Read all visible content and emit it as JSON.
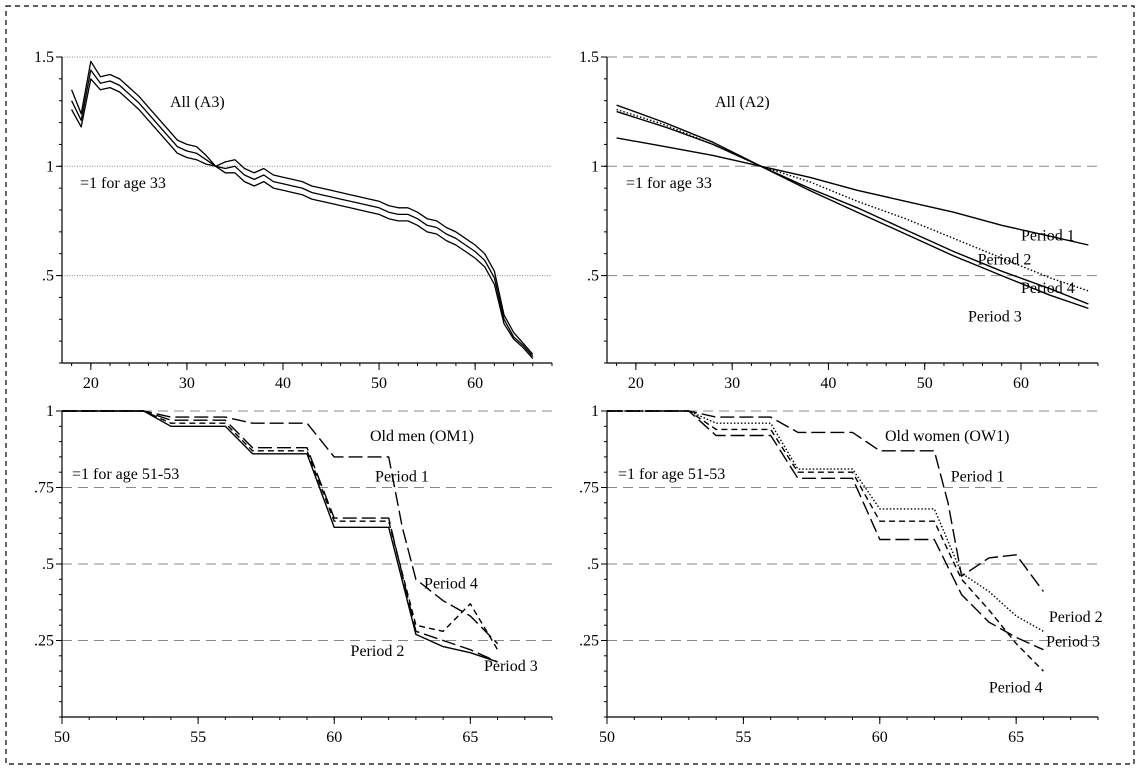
{
  "charts": [
    {
      "title": "All (A3)",
      "type": "line",
      "annotation": "=1 for age 33",
      "xlim": [
        17,
        68
      ],
      "ylim": [
        0.1,
        1.5
      ],
      "x_ticks": [
        20,
        30,
        40,
        50,
        60
      ],
      "y_ticks": [
        {
          "value": 0.5,
          "label": ".5"
        },
        {
          "value": 1,
          "label": "1"
        },
        {
          "value": 1.5,
          "label": "1.5"
        }
      ],
      "grid_style": "dotted",
      "series": [
        {
          "style": "solid",
          "x": [
            18,
            19,
            20,
            21,
            22,
            23,
            24,
            25,
            26,
            27,
            28,
            29,
            30,
            31,
            32,
            33,
            34,
            35,
            36,
            37,
            38,
            39,
            40,
            41,
            42,
            43,
            44,
            45,
            46,
            47,
            48,
            49,
            50,
            51,
            52,
            53,
            54,
            55,
            56,
            57,
            58,
            59,
            60,
            61,
            62,
            63,
            64,
            65,
            66
          ],
          "y": [
            1.3,
            1.21,
            1.44,
            1.38,
            1.39,
            1.37,
            1.33,
            1.29,
            1.24,
            1.19,
            1.14,
            1.09,
            1.07,
            1.06,
            1.03,
            1.0,
            0.99,
            1.0,
            0.96,
            0.94,
            0.96,
            0.93,
            0.92,
            0.91,
            0.9,
            0.88,
            0.87,
            0.86,
            0.85,
            0.84,
            0.83,
            0.82,
            0.81,
            0.79,
            0.78,
            0.78,
            0.76,
            0.73,
            0.72,
            0.69,
            0.67,
            0.64,
            0.61,
            0.57,
            0.49,
            0.3,
            0.22,
            0.18,
            0.13
          ]
        },
        {
          "style": "solid",
          "x": [
            18,
            19,
            20,
            21,
            22,
            23,
            24,
            25,
            26,
            27,
            28,
            29,
            30,
            31,
            32,
            33,
            34,
            35,
            36,
            37,
            38,
            39,
            40,
            41,
            42,
            43,
            44,
            45,
            46,
            47,
            48,
            49,
            50,
            51,
            52,
            53,
            54,
            55,
            56,
            57,
            58,
            59,
            60,
            61,
            62,
            63,
            64,
            65,
            66
          ],
          "y": [
            1.35,
            1.24,
            1.48,
            1.41,
            1.42,
            1.4,
            1.36,
            1.32,
            1.27,
            1.22,
            1.17,
            1.12,
            1.1,
            1.09,
            1.05,
            1.0,
            1.02,
            1.03,
            0.99,
            0.97,
            0.99,
            0.96,
            0.95,
            0.94,
            0.93,
            0.91,
            0.9,
            0.89,
            0.88,
            0.87,
            0.86,
            0.85,
            0.84,
            0.82,
            0.81,
            0.81,
            0.79,
            0.76,
            0.75,
            0.72,
            0.7,
            0.67,
            0.64,
            0.6,
            0.52,
            0.32,
            0.24,
            0.19,
            0.14
          ]
        },
        {
          "style": "solid",
          "x": [
            18,
            19,
            20,
            21,
            22,
            23,
            24,
            25,
            26,
            27,
            28,
            29,
            30,
            31,
            32,
            33,
            34,
            35,
            36,
            37,
            38,
            39,
            40,
            41,
            42,
            43,
            44,
            45,
            46,
            47,
            48,
            49,
            50,
            51,
            52,
            53,
            54,
            55,
            56,
            57,
            58,
            59,
            60,
            61,
            62,
            63,
            64,
            65,
            66
          ],
          "y": [
            1.26,
            1.18,
            1.4,
            1.35,
            1.36,
            1.34,
            1.3,
            1.26,
            1.21,
            1.16,
            1.11,
            1.06,
            1.04,
            1.03,
            1.01,
            1.0,
            0.97,
            0.97,
            0.93,
            0.91,
            0.93,
            0.9,
            0.89,
            0.88,
            0.87,
            0.85,
            0.84,
            0.83,
            0.82,
            0.81,
            0.8,
            0.79,
            0.78,
            0.76,
            0.75,
            0.75,
            0.73,
            0.7,
            0.69,
            0.66,
            0.64,
            0.61,
            0.58,
            0.54,
            0.46,
            0.28,
            0.21,
            0.17,
            0.12
          ]
        }
      ],
      "labels": []
    },
    {
      "title": "All (A2)",
      "type": "line",
      "annotation": "=1 for age 33",
      "xlim": [
        17,
        68
      ],
      "ylim": [
        0.1,
        1.5
      ],
      "x_ticks": [
        20,
        30,
        40,
        50,
        60
      ],
      "y_ticks": [
        {
          "value": 0.5,
          "label": ".5"
        },
        {
          "value": 1,
          "label": "1"
        },
        {
          "value": 1.5,
          "label": "1.5"
        }
      ],
      "grid_style": "dashed",
      "series": [
        {
          "name": "Period 1",
          "style": "solid",
          "x": [
            18,
            23,
            28,
            33,
            38,
            43,
            48,
            53,
            58,
            63,
            67
          ],
          "y": [
            1.13,
            1.09,
            1.05,
            1.0,
            0.95,
            0.89,
            0.84,
            0.79,
            0.73,
            0.68,
            0.64
          ]
        },
        {
          "name": "Period 2",
          "style": "dotted",
          "x": [
            18,
            23,
            28,
            33,
            38,
            43,
            48,
            53,
            58,
            63,
            67
          ],
          "y": [
            1.26,
            1.19,
            1.1,
            1.0,
            0.93,
            0.84,
            0.76,
            0.67,
            0.58,
            0.49,
            0.43
          ]
        },
        {
          "name": "Period 4",
          "style": "solid",
          "x": [
            18,
            23,
            28,
            33,
            38,
            43,
            48,
            53,
            58,
            63,
            67
          ],
          "y": [
            1.28,
            1.2,
            1.11,
            1.0,
            0.9,
            0.81,
            0.71,
            0.61,
            0.52,
            0.44,
            0.37
          ]
        },
        {
          "name": "Period 3",
          "style": "solid",
          "x": [
            18,
            23,
            28,
            33,
            38,
            43,
            48,
            53,
            58,
            63,
            67
          ],
          "y": [
            1.25,
            1.18,
            1.1,
            1.0,
            0.89,
            0.79,
            0.69,
            0.59,
            0.5,
            0.41,
            0.35
          ]
        }
      ],
      "labels": [
        {
          "text": "Period 1",
          "x": 60,
          "y": 0.66
        },
        {
          "text": "Period 2",
          "x": 55.5,
          "y": 0.55
        },
        {
          "text": "Period 4",
          "x": 60,
          "y": 0.42
        },
        {
          "text": "Period 3",
          "x": 54.5,
          "y": 0.29
        }
      ]
    },
    {
      "title": "Old men (OM1)",
      "type": "line",
      "annotation": "=1 for age 51-53",
      "xlim": [
        50,
        68
      ],
      "ylim": [
        0,
        1
      ],
      "x_ticks": [
        50,
        55,
        60,
        65
      ],
      "y_ticks": [
        {
          "value": 0.25,
          "label": ".25"
        },
        {
          "value": 0.5,
          "label": ".5"
        },
        {
          "value": 0.75,
          "label": ".75"
        },
        {
          "value": 1,
          "label": "1"
        }
      ],
      "grid_style": "dashed",
      "series": [
        {
          "name": "Period 1",
          "style": "long-dash",
          "x": [
            50,
            53,
            54,
            56,
            57,
            59,
            60,
            62,
            62.5,
            63,
            64,
            65,
            66
          ],
          "y": [
            1,
            1,
            0.98,
            0.98,
            0.96,
            0.96,
            0.85,
            0.85,
            0.62,
            0.45,
            0.38,
            0.33,
            0.24
          ]
        },
        {
          "name": "Period 2",
          "style": "solid",
          "x": [
            50,
            53,
            54,
            56,
            57,
            59,
            60,
            62,
            63,
            64,
            65,
            66
          ],
          "y": [
            1,
            1,
            0.95,
            0.95,
            0.86,
            0.86,
            0.62,
            0.62,
            0.27,
            0.23,
            0.21,
            0.18
          ]
        },
        {
          "name": "Period 3",
          "style": "long-dash",
          "x": [
            50,
            53,
            54,
            56,
            57,
            59,
            60,
            62,
            63,
            64,
            65,
            66
          ],
          "y": [
            1,
            1,
            0.97,
            0.97,
            0.88,
            0.88,
            0.65,
            0.65,
            0.28,
            0.25,
            0.22,
            0.18
          ]
        },
        {
          "name": "Period 4",
          "style": "short-dash",
          "x": [
            50,
            53,
            54,
            56,
            57,
            59,
            60,
            62,
            63,
            64,
            65,
            66
          ],
          "y": [
            1,
            1,
            0.96,
            0.96,
            0.87,
            0.87,
            0.64,
            0.64,
            0.3,
            0.28,
            0.37,
            0.22
          ]
        }
      ],
      "labels": [
        {
          "text": "Period 1",
          "x": 61.5,
          "y": 0.77
        },
        {
          "text": "Period 4",
          "x": 63.3,
          "y": 0.42
        },
        {
          "text": "Period 2",
          "x": 60.6,
          "y": 0.2
        },
        {
          "text": "Period 3",
          "x": 65.5,
          "y": 0.15
        }
      ]
    },
    {
      "title": "Old women (OW1)",
      "type": "line",
      "annotation": "=1 for age 51-53",
      "xlim": [
        50,
        68
      ],
      "ylim": [
        0,
        1
      ],
      "x_ticks": [
        50,
        55,
        60,
        65
      ],
      "y_ticks": [
        {
          "value": 0.25,
          "label": ".25"
        },
        {
          "value": 0.5,
          "label": ".5"
        },
        {
          "value": 0.75,
          "label": ".75"
        },
        {
          "value": 1,
          "label": "1"
        }
      ],
      "grid_style": "dashed",
      "series": [
        {
          "name": "Period 1",
          "style": "long-dash",
          "x": [
            50,
            53,
            54,
            56,
            57,
            59,
            60,
            62,
            62.5,
            63,
            64,
            65,
            66
          ],
          "y": [
            1,
            1,
            0.98,
            0.98,
            0.93,
            0.93,
            0.87,
            0.87,
            0.7,
            0.46,
            0.52,
            0.53,
            0.41
          ]
        },
        {
          "name": "Period 2",
          "style": "dotted",
          "x": [
            50,
            53,
            54,
            56,
            57,
            59,
            60,
            62,
            63,
            64,
            65,
            66
          ],
          "y": [
            1,
            1,
            0.96,
            0.96,
            0.81,
            0.81,
            0.68,
            0.68,
            0.47,
            0.41,
            0.33,
            0.28
          ]
        },
        {
          "name": "Period 3",
          "style": "long-dash",
          "x": [
            50,
            53,
            54,
            56,
            57,
            59,
            60,
            62,
            63,
            64,
            65,
            66
          ],
          "y": [
            1,
            1,
            0.92,
            0.92,
            0.78,
            0.78,
            0.58,
            0.58,
            0.4,
            0.31,
            0.26,
            0.22
          ]
        },
        {
          "name": "Period 4",
          "style": "short-dash",
          "x": [
            50,
            53,
            54,
            56,
            57,
            59,
            60,
            62,
            63,
            64,
            65,
            66
          ],
          "y": [
            1,
            1,
            0.94,
            0.94,
            0.8,
            0.8,
            0.64,
            0.64,
            0.45,
            0.35,
            0.24,
            0.15
          ]
        }
      ],
      "labels": [
        {
          "text": "Period 1",
          "x": 62.6,
          "y": 0.77
        },
        {
          "text": "Period 2",
          "x": 66.2,
          "y": 0.31
        },
        {
          "text": "Period 3",
          "x": 66.1,
          "y": 0.23
        },
        {
          "text": "Period 4",
          "x": 64,
          "y": 0.08
        }
      ]
    }
  ]
}
